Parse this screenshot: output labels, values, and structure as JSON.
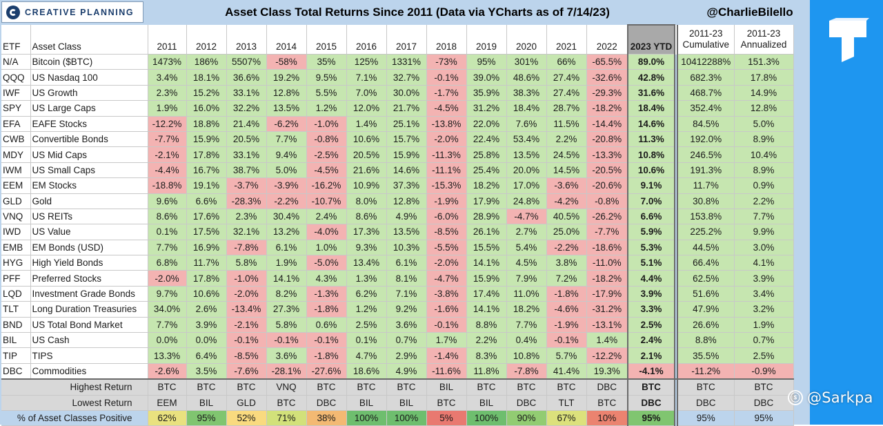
{
  "header": {
    "brand": "CREATIVE PLANNING",
    "title": "Asset Class Total Returns Since 2011 (Data via YCharts as of 7/14/23)",
    "handle": "@CharlieBilello"
  },
  "watermark": {
    "text": "@Sarkpa"
  },
  "colors": {
    "positive": "#c6e6b0",
    "negative": "#f3b3b2",
    "table_bg": "#bcd4ec",
    "side_panel": "#1e96f0",
    "ytd_header": "#a9a9a9",
    "summary_bg": "#d8d8d8"
  },
  "chart_data": {
    "type": "table",
    "columns": {
      "etf": "ETF",
      "asset": "Asset Class",
      "years": [
        "2011",
        "2012",
        "2013",
        "2014",
        "2015",
        "2016",
        "2017",
        "2018",
        "2019",
        "2020",
        "2021",
        "2022",
        "2023 YTD"
      ],
      "cumulative": [
        "2011-23",
        "Cumulative"
      ],
      "annualized": [
        "2011-23",
        "Annualized"
      ]
    },
    "rows": [
      {
        "etf": "N/A",
        "asset": "Bitcoin ($BTC)",
        "values": [
          "1473%",
          "186%",
          "5507%",
          "-58%",
          "35%",
          "125%",
          "1331%",
          "-73%",
          "95%",
          "301%",
          "66%",
          "-65.5%",
          "89.0%"
        ],
        "cumulative": "10412288%",
        "annualized": "151.3%"
      },
      {
        "etf": "QQQ",
        "asset": "US Nasdaq 100",
        "values": [
          "3.4%",
          "18.1%",
          "36.6%",
          "19.2%",
          "9.5%",
          "7.1%",
          "32.7%",
          "-0.1%",
          "39.0%",
          "48.6%",
          "27.4%",
          "-32.6%",
          "42.8%"
        ],
        "cumulative": "682.3%",
        "annualized": "17.8%"
      },
      {
        "etf": "IWF",
        "asset": "US Growth",
        "values": [
          "2.3%",
          "15.2%",
          "33.1%",
          "12.8%",
          "5.5%",
          "7.0%",
          "30.0%",
          "-1.7%",
          "35.9%",
          "38.3%",
          "27.4%",
          "-29.3%",
          "31.6%"
        ],
        "cumulative": "468.7%",
        "annualized": "14.9%"
      },
      {
        "etf": "SPY",
        "asset": "US Large Caps",
        "values": [
          "1.9%",
          "16.0%",
          "32.2%",
          "13.5%",
          "1.2%",
          "12.0%",
          "21.7%",
          "-4.5%",
          "31.2%",
          "18.4%",
          "28.7%",
          "-18.2%",
          "18.4%"
        ],
        "cumulative": "352.4%",
        "annualized": "12.8%"
      },
      {
        "etf": "EFA",
        "asset": "EAFE Stocks",
        "values": [
          "-12.2%",
          "18.8%",
          "21.4%",
          "-6.2%",
          "-1.0%",
          "1.4%",
          "25.1%",
          "-13.8%",
          "22.0%",
          "7.6%",
          "11.5%",
          "-14.4%",
          "14.6%"
        ],
        "cumulative": "84.5%",
        "annualized": "5.0%"
      },
      {
        "etf": "CWB",
        "asset": "Convertible Bonds",
        "values": [
          "-7.7%",
          "15.9%",
          "20.5%",
          "7.7%",
          "-0.8%",
          "10.6%",
          "15.7%",
          "-2.0%",
          "22.4%",
          "53.4%",
          "2.2%",
          "-20.8%",
          "11.3%"
        ],
        "cumulative": "192.0%",
        "annualized": "8.9%"
      },
      {
        "etf": "MDY",
        "asset": "US Mid Caps",
        "values": [
          "-2.1%",
          "17.8%",
          "33.1%",
          "9.4%",
          "-2.5%",
          "20.5%",
          "15.9%",
          "-11.3%",
          "25.8%",
          "13.5%",
          "24.5%",
          "-13.3%",
          "10.8%"
        ],
        "cumulative": "246.5%",
        "annualized": "10.4%"
      },
      {
        "etf": "IWM",
        "asset": "US Small Caps",
        "values": [
          "-4.4%",
          "16.7%",
          "38.7%",
          "5.0%",
          "-4.5%",
          "21.6%",
          "14.6%",
          "-11.1%",
          "25.4%",
          "20.0%",
          "14.5%",
          "-20.5%",
          "10.6%"
        ],
        "cumulative": "191.3%",
        "annualized": "8.9%"
      },
      {
        "etf": "EEM",
        "asset": "EM Stocks",
        "values": [
          "-18.8%",
          "19.1%",
          "-3.7%",
          "-3.9%",
          "-16.2%",
          "10.9%",
          "37.3%",
          "-15.3%",
          "18.2%",
          "17.0%",
          "-3.6%",
          "-20.6%",
          "9.1%"
        ],
        "cumulative": "11.7%",
        "annualized": "0.9%"
      },
      {
        "etf": "GLD",
        "asset": "Gold",
        "values": [
          "9.6%",
          "6.6%",
          "-28.3%",
          "-2.2%",
          "-10.7%",
          "8.0%",
          "12.8%",
          "-1.9%",
          "17.9%",
          "24.8%",
          "-4.2%",
          "-0.8%",
          "7.0%"
        ],
        "cumulative": "30.8%",
        "annualized": "2.2%"
      },
      {
        "etf": "VNQ",
        "asset": "US REITs",
        "values": [
          "8.6%",
          "17.6%",
          "2.3%",
          "30.4%",
          "2.4%",
          "8.6%",
          "4.9%",
          "-6.0%",
          "28.9%",
          "-4.7%",
          "40.5%",
          "-26.2%",
          "6.6%"
        ],
        "cumulative": "153.8%",
        "annualized": "7.7%"
      },
      {
        "etf": "IWD",
        "asset": "US Value",
        "values": [
          "0.1%",
          "17.5%",
          "32.1%",
          "13.2%",
          "-4.0%",
          "17.3%",
          "13.5%",
          "-8.5%",
          "26.1%",
          "2.7%",
          "25.0%",
          "-7.7%",
          "5.9%"
        ],
        "cumulative": "225.2%",
        "annualized": "9.9%"
      },
      {
        "etf": "EMB",
        "asset": "EM Bonds (USD)",
        "values": [
          "7.7%",
          "16.9%",
          "-7.8%",
          "6.1%",
          "1.0%",
          "9.3%",
          "10.3%",
          "-5.5%",
          "15.5%",
          "5.4%",
          "-2.2%",
          "-18.6%",
          "5.3%"
        ],
        "cumulative": "44.5%",
        "annualized": "3.0%"
      },
      {
        "etf": "HYG",
        "asset": "High Yield Bonds",
        "values": [
          "6.8%",
          "11.7%",
          "5.8%",
          "1.9%",
          "-5.0%",
          "13.4%",
          "6.1%",
          "-2.0%",
          "14.1%",
          "4.5%",
          "3.8%",
          "-11.0%",
          "5.1%"
        ],
        "cumulative": "66.4%",
        "annualized": "4.1%"
      },
      {
        "etf": "PFF",
        "asset": "Preferred Stocks",
        "values": [
          "-2.0%",
          "17.8%",
          "-1.0%",
          "14.1%",
          "4.3%",
          "1.3%",
          "8.1%",
          "-4.7%",
          "15.9%",
          "7.9%",
          "7.2%",
          "-18.2%",
          "4.4%"
        ],
        "cumulative": "62.5%",
        "annualized": "3.9%"
      },
      {
        "etf": "LQD",
        "asset": "Investment Grade Bonds",
        "values": [
          "9.7%",
          "10.6%",
          "-2.0%",
          "8.2%",
          "-1.3%",
          "6.2%",
          "7.1%",
          "-3.8%",
          "17.4%",
          "11.0%",
          "-1.8%",
          "-17.9%",
          "3.9%"
        ],
        "cumulative": "51.6%",
        "annualized": "3.4%"
      },
      {
        "etf": "TLT",
        "asset": "Long Duration Treasuries",
        "values": [
          "34.0%",
          "2.6%",
          "-13.4%",
          "27.3%",
          "-1.8%",
          "1.2%",
          "9.2%",
          "-1.6%",
          "14.1%",
          "18.2%",
          "-4.6%",
          "-31.2%",
          "3.3%"
        ],
        "cumulative": "47.9%",
        "annualized": "3.2%"
      },
      {
        "etf": "BND",
        "asset": "US Total Bond Market",
        "values": [
          "7.7%",
          "3.9%",
          "-2.1%",
          "5.8%",
          "0.6%",
          "2.5%",
          "3.6%",
          "-0.1%",
          "8.8%",
          "7.7%",
          "-1.9%",
          "-13.1%",
          "2.5%"
        ],
        "cumulative": "26.6%",
        "annualized": "1.9%"
      },
      {
        "etf": "BIL",
        "asset": "US Cash",
        "values": [
          "0.0%",
          "0.0%",
          "-0.1%",
          "-0.1%",
          "-0.1%",
          "0.1%",
          "0.7%",
          "1.7%",
          "2.2%",
          "0.4%",
          "-0.1%",
          "1.4%",
          "2.4%"
        ],
        "cumulative": "8.8%",
        "annualized": "0.7%"
      },
      {
        "etf": "TIP",
        "asset": "TIPS",
        "values": [
          "13.3%",
          "6.4%",
          "-8.5%",
          "3.6%",
          "-1.8%",
          "4.7%",
          "2.9%",
          "-1.4%",
          "8.3%",
          "10.8%",
          "5.7%",
          "-12.2%",
          "2.1%"
        ],
        "cumulative": "35.5%",
        "annualized": "2.5%"
      },
      {
        "etf": "DBC",
        "asset": "Commodities",
        "values": [
          "-2.6%",
          "3.5%",
          "-7.6%",
          "-28.1%",
          "-27.6%",
          "18.6%",
          "4.9%",
          "-11.6%",
          "11.8%",
          "-7.8%",
          "41.4%",
          "19.3%",
          "-4.1%"
        ],
        "cumulative": "-11.2%",
        "annualized": "-0.9%"
      }
    ],
    "summary": [
      {
        "label": "Highest Return",
        "values": [
          "BTC",
          "BTC",
          "BTC",
          "VNQ",
          "BTC",
          "BTC",
          "BTC",
          "BIL",
          "BTC",
          "BTC",
          "BTC",
          "DBC",
          "BTC"
        ],
        "cumulative": "BTC",
        "annualized": "BTC"
      },
      {
        "label": "Lowest Return",
        "values": [
          "EEM",
          "BIL",
          "GLD",
          "BTC",
          "DBC",
          "BIL",
          "BIL",
          "BTC",
          "BIL",
          "DBC",
          "TLT",
          "BTC",
          "DBC"
        ],
        "cumulative": "DBC",
        "annualized": "DBC"
      },
      {
        "label": "% of Asset Classes Positive",
        "values": [
          "62%",
          "95%",
          "52%",
          "71%",
          "38%",
          "100%",
          "100%",
          "5%",
          "100%",
          "90%",
          "67%",
          "10%",
          "95%"
        ],
        "cumulative": "95%",
        "annualized": "95%"
      }
    ]
  }
}
